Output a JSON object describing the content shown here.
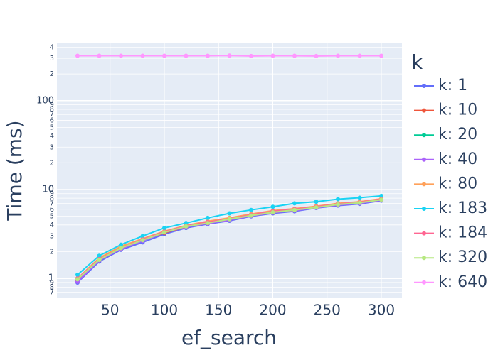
{
  "chart_data": {
    "type": "line",
    "x_label": "ef_search",
    "y_label": "Time (ms)",
    "legend_title": "k",
    "log_y": true,
    "grid": true,
    "legend_position": "right",
    "x": [
      20,
      40,
      60,
      80,
      100,
      120,
      140,
      160,
      180,
      200,
      220,
      240,
      260,
      280,
      300
    ],
    "xlim": [
      1,
      319
    ],
    "xticks": [
      50,
      100,
      150,
      200,
      250,
      300
    ],
    "ylim": [
      0.6,
      450
    ],
    "yticks": [
      {
        "value": 0.7,
        "label": "7"
      },
      {
        "value": 0.8,
        "label": "8"
      },
      {
        "value": 0.9,
        "label": "9"
      },
      1,
      2,
      3,
      4,
      5,
      6,
      7,
      8,
      9,
      10,
      {
        "value": 20,
        "label": "2"
      },
      {
        "value": 30,
        "label": "3"
      },
      {
        "value": 40,
        "label": "4"
      },
      {
        "value": 50,
        "label": "5"
      },
      {
        "value": 60,
        "label": "6"
      },
      {
        "value": 70,
        "label": "7"
      },
      {
        "value": 80,
        "label": "8"
      },
      {
        "value": 90,
        "label": "9"
      },
      100,
      {
        "value": 200,
        "label": "2"
      },
      {
        "value": 300,
        "label": "3"
      },
      {
        "value": 400,
        "label": "4"
      }
    ],
    "series": [
      {
        "name": "k: 1",
        "color": "#636efa",
        "values": [
          0.9,
          1.55,
          2.1,
          2.55,
          3.15,
          3.7,
          4.1,
          4.45,
          5.0,
          5.4,
          5.7,
          6.2,
          6.6,
          6.9,
          7.5
        ]
      },
      {
        "name": "k: 10",
        "color": "#ef553b",
        "values": [
          0.95,
          1.6,
          2.2,
          2.7,
          3.25,
          3.8,
          4.2,
          4.6,
          5.1,
          5.5,
          5.85,
          6.3,
          6.8,
          7.1,
          7.7
        ]
      },
      {
        "name": "k: 20",
        "color": "#00cc96",
        "values": [
          1.0,
          1.65,
          2.25,
          2.75,
          3.3,
          3.85,
          4.25,
          4.65,
          5.15,
          5.6,
          5.9,
          6.35,
          6.9,
          7.2,
          7.8
        ]
      },
      {
        "name": "k: 40",
        "color": "#ab63fa",
        "values": [
          0.92,
          1.6,
          2.15,
          2.65,
          3.3,
          3.8,
          4.15,
          4.55,
          5.05,
          5.5,
          5.8,
          6.25,
          6.7,
          7.0,
          7.6
        ]
      },
      {
        "name": "k: 80",
        "color": "#ffa15a",
        "values": [
          1.0,
          1.7,
          2.3,
          2.8,
          3.4,
          3.95,
          4.4,
          4.8,
          5.3,
          5.8,
          6.1,
          6.5,
          7.0,
          7.3,
          7.9
        ]
      },
      {
        "name": "k: 183",
        "color": "#19d3f3",
        "values": [
          1.1,
          1.8,
          2.4,
          3.0,
          3.7,
          4.2,
          4.8,
          5.4,
          5.9,
          6.4,
          7.0,
          7.3,
          7.8,
          8.1,
          8.5
        ]
      },
      {
        "name": "k: 184",
        "color": "#ff6692",
        "values": [
          1.0,
          1.65,
          2.2,
          2.75,
          3.35,
          3.9,
          4.3,
          4.7,
          5.2,
          5.7,
          6.0,
          6.4,
          6.9,
          7.2,
          7.8
        ]
      },
      {
        "name": "k: 320",
        "color": "#b6e880",
        "values": [
          0.98,
          1.62,
          2.2,
          2.7,
          3.3,
          3.85,
          4.2,
          4.65,
          5.1,
          5.55,
          5.9,
          6.3,
          6.8,
          7.1,
          7.7
        ]
      },
      {
        "name": "k: 640",
        "color": "#ff97ff",
        "values": [
          320,
          320,
          320,
          320,
          320,
          320,
          320,
          322,
          318,
          320,
          320,
          318,
          320,
          320,
          320
        ]
      }
    ]
  }
}
